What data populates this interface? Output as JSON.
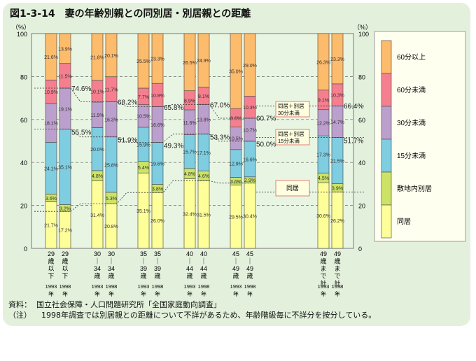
{
  "title": "図1-3-14　妻の年齢別親との同別居・別居親との距離",
  "chart_data": {
    "type": "bar",
    "stacked": true,
    "yunit": "（%）",
    "ylim": [
      0,
      100
    ],
    "yticks": [
      0,
      20,
      40,
      60,
      80,
      100
    ],
    "grid": true,
    "legend_placement": "right",
    "groups": [
      {
        "label": [
          "29",
          "歳",
          "以",
          "下"
        ]
      },
      {
        "label": [
          "30",
          "｜",
          "34",
          "歳"
        ]
      },
      {
        "label": [
          "35",
          "｜",
          "39",
          "歳"
        ]
      },
      {
        "label": [
          "40",
          "｜",
          "44",
          "歳"
        ]
      },
      {
        "label": [
          "45",
          "｜",
          "49",
          "歳"
        ]
      },
      {
        "label": [
          "49",
          "歳",
          "ま",
          "で",
          "計"
        ]
      }
    ],
    "years": [
      "1993",
      "1998"
    ],
    "year_suffix": "年",
    "series": [
      {
        "name": "同居",
        "color": "#ffff99"
      },
      {
        "name": "敷地内別居",
        "color": "#cce366"
      },
      {
        "name": "15分未満",
        "color": "#7ecde0"
      },
      {
        "name": "30分未満",
        "color": "#bb9fcc"
      },
      {
        "name": "60分未満",
        "color": "#f57f8f"
      },
      {
        "name": "60分以上",
        "color": "#fdbb6c"
      }
    ],
    "bars": [
      {
        "group": 0,
        "year": "1993",
        "values": [
          21.7,
          3.6,
          24.1,
          18.1,
          10.9,
          21.6
        ]
      },
      {
        "group": 0,
        "year": "1998",
        "values": [
          17.2,
          3.2,
          35.1,
          19.1,
          11.5,
          13.9
        ]
      },
      {
        "group": 1,
        "year": "1993",
        "values": [
          31.4,
          4.8,
          20.0,
          11.9,
          10.1,
          21.8
        ]
      },
      {
        "group": 1,
        "year": "1998",
        "values": [
          20.8,
          5.3,
          25.8,
          16.3,
          11.7,
          20.1
        ]
      },
      {
        "group": 2,
        "year": "1993",
        "values": [
          35.1,
          5.4,
          15.9,
          10.5,
          7.7,
          25.5
        ]
      },
      {
        "group": 2,
        "year": "1998",
        "values": [
          26.0,
          3.8,
          19.6,
          16.6,
          10.8,
          23.3
        ]
      },
      {
        "group": 3,
        "year": "1993",
        "values": [
          32.4,
          4.8,
          15.7,
          11.6,
          8.9,
          26.5
        ]
      },
      {
        "group": 3,
        "year": "1998",
        "values": [
          31.5,
          4.6,
          17.1,
          13.8,
          8.1,
          24.9
        ]
      },
      {
        "group": 4,
        "year": "1993",
        "values": [
          29.5,
          3.6,
          12.9,
          10.5,
          8.6,
          35.0
        ]
      },
      {
        "group": 4,
        "year": "1998",
        "values": [
          30.4,
          2.9,
          16.6,
          10.7,
          10.3,
          29.0
        ]
      },
      {
        "group": 5,
        "year": "1993",
        "values": [
          30.6,
          4.5,
          17.3,
          12.2,
          9.1,
          26.3
        ]
      },
      {
        "group": 5,
        "year": "1998",
        "values": [
          26.2,
          3.9,
          21.5,
          14.7,
          10.3,
          23.3
        ]
      }
    ],
    "cumulative_labels": {
      "within_30min_1998": [
        "74.6%",
        "68.2%",
        "65.8%",
        "67.0%",
        "60.7%",
        "66.4%"
      ],
      "within_15min_1998": [
        "55.5%",
        "51.9%",
        "49.3%",
        "53.3%",
        "50.0%",
        "51.7%"
      ]
    },
    "annotations": [
      {
        "lines": [
          "同居＋別居",
          "30分未満"
        ],
        "value": 60.7
      },
      {
        "lines": [
          "同居＋別居",
          "15分未満"
        ],
        "value": 50.0
      },
      {
        "lines": [
          "同居"
        ],
        "value": 30.4
      }
    ]
  },
  "notes": {
    "source": "資料：  国立社会保障・人口問題研究所「全国家庭動向調査」",
    "note": "（注）    1998年調査では別居親との距離について不詳があるため、年齢階級毎に不詳分を按分している。"
  }
}
